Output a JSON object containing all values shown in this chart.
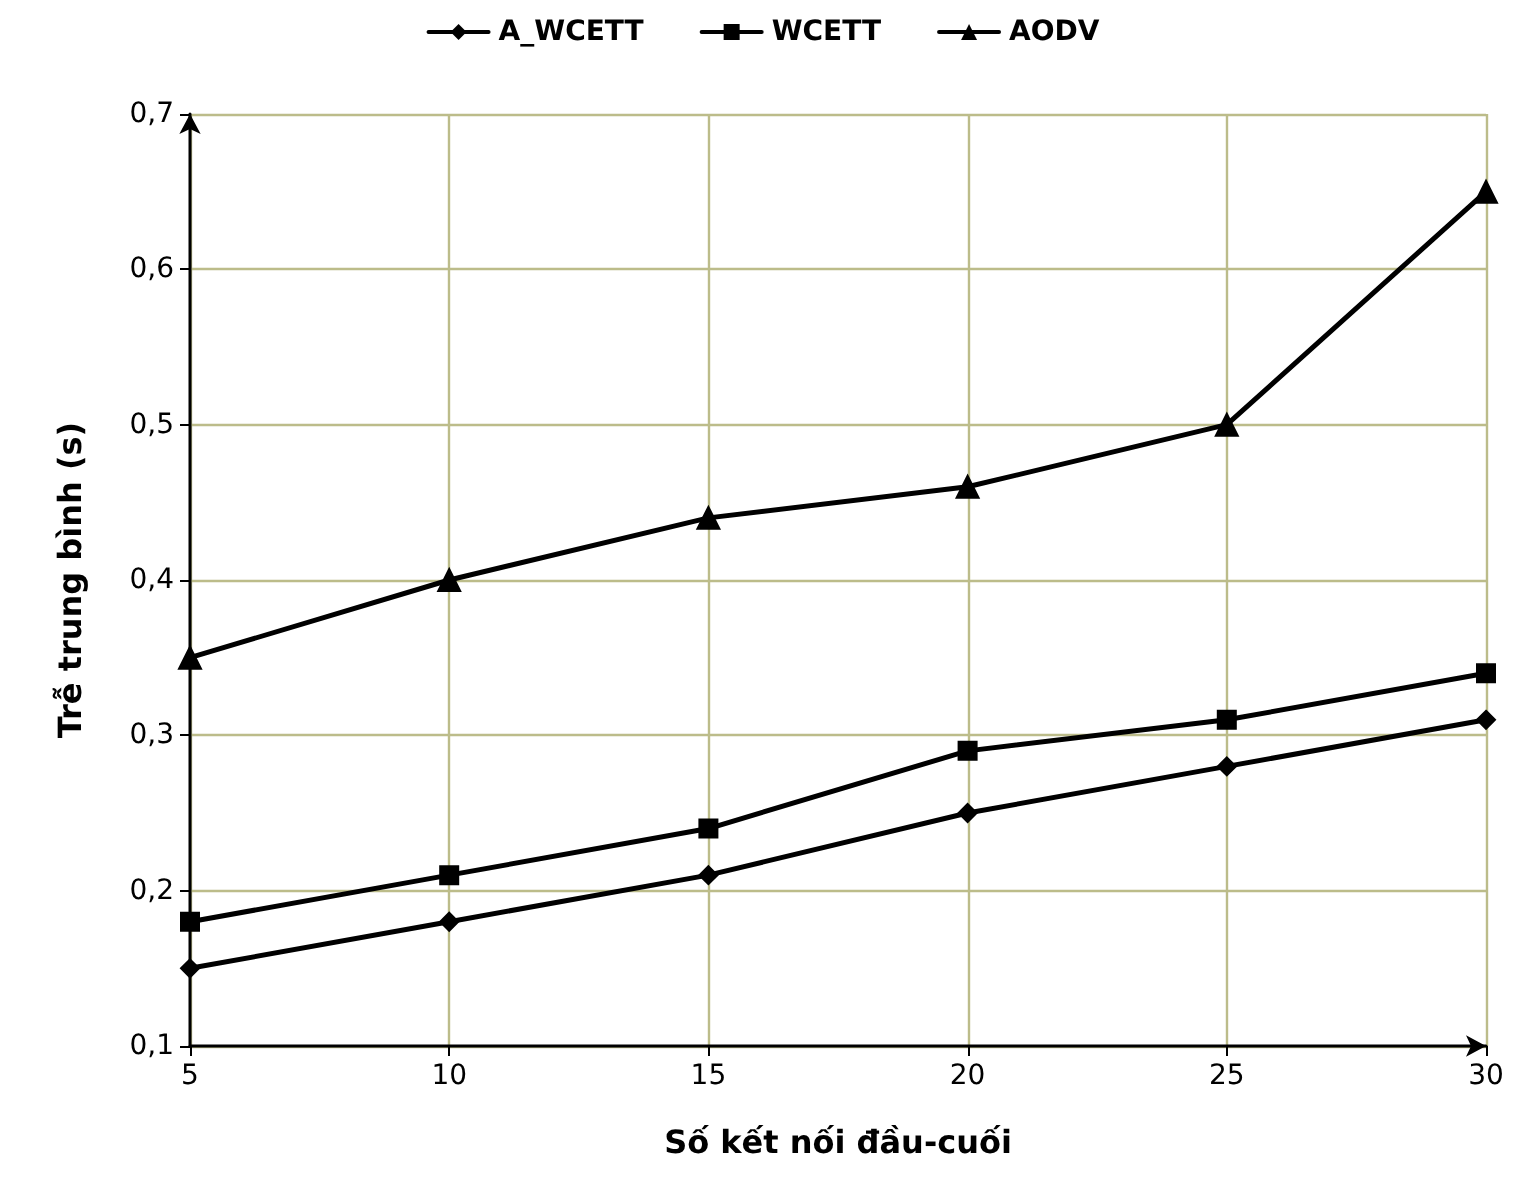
{
  "chart_data": {
    "type": "line",
    "xlabel": "Số kết nối đầu-cuối",
    "ylabel": "Trễ trung bình (s)",
    "x": [
      5,
      10,
      15,
      20,
      25,
      30
    ],
    "series": [
      {
        "name": "A_WCETT",
        "color": "#000000",
        "marker": "diamond",
        "values": [
          0.15,
          0.18,
          0.21,
          0.25,
          0.28,
          0.31
        ]
      },
      {
        "name": "WCETT",
        "color": "#000000",
        "marker": "square",
        "values": [
          0.18,
          0.21,
          0.24,
          0.29,
          0.31,
          0.34
        ]
      },
      {
        "name": "AODV",
        "color": "#000000",
        "marker": "triangle",
        "values": [
          0.35,
          0.4,
          0.44,
          0.46,
          0.5,
          0.65
        ]
      }
    ],
    "xlim": [
      5,
      30
    ],
    "xticks": [
      5,
      10,
      15,
      20,
      25,
      30
    ],
    "ylim": [
      0.1,
      0.7
    ],
    "yticks": [
      {
        "value": 0.1,
        "label": "0,1"
      },
      {
        "value": 0.2,
        "label": "0,2"
      },
      {
        "value": 0.3,
        "label": "0,3"
      },
      {
        "value": 0.4,
        "label": "0,4"
      },
      {
        "value": 0.5,
        "label": "0,5"
      },
      {
        "value": 0.6,
        "label": "0,6"
      },
      {
        "value": 0.7,
        "label": "0,7"
      }
    ],
    "grid": true,
    "legend": "top",
    "line_style": "solid"
  }
}
